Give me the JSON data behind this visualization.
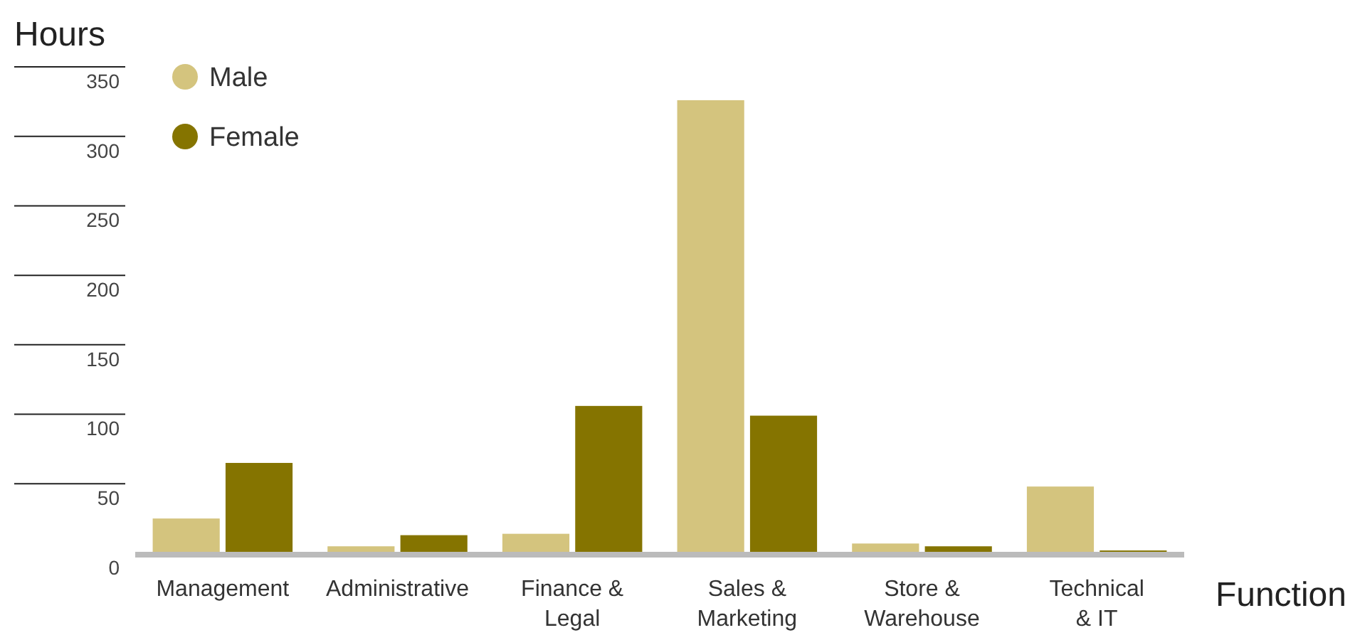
{
  "chart_data": {
    "type": "bar",
    "ylabel": "Hours",
    "xlabel": "Function",
    "categories": [
      "Management",
      "Administrative",
      "Finance & Legal",
      "Sales & Marketing",
      "Store & Warehouse",
      "Technical & IT"
    ],
    "series": [
      {
        "name": "Male",
        "color": "#d4c47e",
        "values": [
          25,
          5,
          14,
          326,
          7,
          48
        ]
      },
      {
        "name": "Female",
        "color": "#857400",
        "values": [
          65,
          13,
          106,
          99,
          5,
          2
        ]
      }
    ],
    "ylim": [
      0,
      350
    ],
    "yticks": [
      0,
      50,
      100,
      150,
      200,
      250,
      300,
      350
    ],
    "legend": "top left"
  }
}
